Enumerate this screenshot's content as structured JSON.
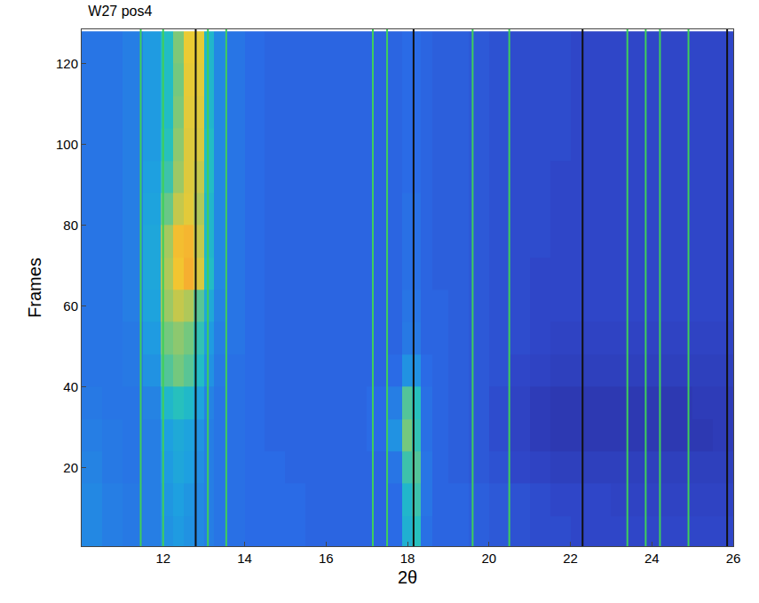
{
  "chart_data": {
    "type": "heatmap",
    "title": "W27 pos4",
    "x_label": "2θ",
    "y_label": "Frames",
    "xlim": [
      10,
      26
    ],
    "ylim": [
      0.5,
      128.5
    ],
    "xticks": [
      12,
      14,
      16,
      18,
      20,
      22,
      24,
      26
    ],
    "yticks": [
      20,
      40,
      60,
      80,
      100,
      120
    ],
    "zlim": [
      0,
      100
    ],
    "x": [
      10.25,
      10.75,
      11.25,
      11.75,
      12.125,
      12.375,
      12.625,
      12.875,
      13.125,
      13.375,
      13.75,
      14.25,
      14.75,
      15.25,
      15.75,
      16.25,
      16.75,
      17.25,
      17.75,
      18.0,
      18.2,
      18.45,
      18.75,
      19.25,
      19.75,
      20.25,
      20.75,
      21.25,
      21.75,
      22.25,
      22.75,
      23.25,
      23.75,
      24.25,
      24.75,
      25.25,
      25.75
    ],
    "y": [
      4,
      12,
      20,
      28,
      36,
      44,
      52,
      60,
      68,
      76,
      84,
      92,
      100,
      108,
      116,
      124
    ],
    "z": [
      [
        20,
        18,
        17,
        18,
        22,
        24,
        22,
        20,
        18,
        16,
        15,
        14,
        14,
        14,
        13,
        13,
        13,
        13,
        14,
        30,
        36,
        15,
        13,
        13,
        12,
        11,
        10,
        9,
        9,
        8,
        8,
        8,
        8,
        8,
        8,
        8,
        8
      ],
      [
        20,
        18,
        17,
        18,
        23,
        25,
        23,
        20,
        18,
        16,
        15,
        14,
        14,
        14,
        13,
        13,
        13,
        13,
        14,
        32,
        40,
        16,
        13,
        13,
        12,
        11,
        10,
        9,
        8,
        8,
        8,
        7,
        7,
        7,
        7,
        7,
        7
      ],
      [
        19,
        17,
        16,
        18,
        24,
        27,
        25,
        21,
        18,
        16,
        15,
        14,
        14,
        13,
        13,
        13,
        13,
        13,
        16,
        40,
        44,
        16,
        13,
        12,
        11,
        10,
        8,
        7,
        6,
        6,
        6,
        6,
        6,
        6,
        6,
        6,
        6
      ],
      [
        18,
        17,
        16,
        18,
        25,
        28,
        26,
        22,
        18,
        16,
        15,
        14,
        13,
        13,
        13,
        13,
        13,
        14,
        22,
        50,
        38,
        15,
        13,
        12,
        11,
        9,
        7,
        5,
        4,
        4,
        4,
        4,
        4,
        4,
        4,
        4,
        5
      ],
      [
        17,
        16,
        16,
        19,
        32,
        36,
        33,
        26,
        19,
        16,
        15,
        14,
        13,
        13,
        13,
        13,
        13,
        14,
        18,
        44,
        36,
        15,
        13,
        12,
        11,
        9,
        7,
        5,
        4,
        4,
        4,
        4,
        4,
        4,
        4,
        5,
        5
      ],
      [
        16,
        16,
        17,
        22,
        44,
        50,
        45,
        34,
        22,
        17,
        15,
        14,
        13,
        13,
        13,
        13,
        13,
        13,
        14,
        22,
        22,
        14,
        13,
        12,
        11,
        10,
        8,
        7,
        6,
        6,
        6,
        6,
        6,
        6,
        6,
        6,
        6
      ],
      [
        16,
        16,
        17,
        24,
        50,
        55,
        50,
        38,
        24,
        18,
        16,
        14,
        13,
        13,
        13,
        13,
        13,
        13,
        13,
        17,
        17,
        13,
        13,
        12,
        11,
        10,
        9,
        8,
        7,
        7,
        7,
        7,
        7,
        7,
        7,
        7,
        7
      ],
      [
        16,
        16,
        18,
        26,
        58,
        66,
        62,
        45,
        28,
        19,
        16,
        14,
        13,
        13,
        13,
        13,
        13,
        13,
        13,
        16,
        16,
        13,
        13,
        12,
        11,
        10,
        9,
        8,
        8,
        8,
        8,
        8,
        8,
        8,
        8,
        8,
        8
      ],
      [
        16,
        16,
        18,
        27,
        62,
        82,
        88,
        70,
        34,
        20,
        16,
        14,
        13,
        13,
        13,
        13,
        13,
        13,
        13,
        15,
        15,
        13,
        12,
        12,
        11,
        10,
        9,
        8,
        8,
        8,
        8,
        8,
        8,
        8,
        8,
        8,
        8
      ],
      [
        16,
        16,
        18,
        27,
        60,
        84,
        86,
        66,
        32,
        20,
        16,
        14,
        13,
        13,
        13,
        13,
        13,
        13,
        13,
        15,
        15,
        13,
        12,
        12,
        11,
        10,
        9,
        9,
        8,
        8,
        8,
        8,
        8,
        8,
        8,
        8,
        8
      ],
      [
        16,
        16,
        18,
        26,
        48,
        66,
        74,
        62,
        32,
        20,
        16,
        14,
        13,
        13,
        13,
        13,
        13,
        13,
        13,
        15,
        15,
        13,
        12,
        12,
        11,
        10,
        9,
        9,
        8,
        8,
        8,
        8,
        8,
        8,
        8,
        8,
        8
      ],
      [
        16,
        16,
        18,
        25,
        40,
        58,
        72,
        66,
        34,
        20,
        16,
        14,
        13,
        13,
        13,
        13,
        13,
        13,
        13,
        14,
        14,
        13,
        12,
        12,
        11,
        10,
        9,
        9,
        8,
        8,
        8,
        8,
        8,
        8,
        8,
        8,
        8
      ],
      [
        16,
        16,
        18,
        24,
        36,
        55,
        72,
        70,
        34,
        20,
        16,
        14,
        13,
        13,
        13,
        13,
        13,
        13,
        13,
        14,
        14,
        13,
        12,
        12,
        11,
        10,
        9,
        9,
        9,
        8,
        8,
        8,
        8,
        8,
        8,
        8,
        8
      ],
      [
        16,
        16,
        18,
        24,
        34,
        52,
        74,
        72,
        32,
        20,
        16,
        14,
        13,
        13,
        13,
        13,
        13,
        13,
        13,
        14,
        14,
        13,
        12,
        12,
        11,
        10,
        9,
        9,
        9,
        8,
        8,
        8,
        8,
        8,
        8,
        8,
        8
      ],
      [
        16,
        16,
        18,
        24,
        34,
        50,
        76,
        74,
        32,
        20,
        16,
        14,
        13,
        13,
        13,
        13,
        13,
        13,
        13,
        14,
        14,
        13,
        12,
        12,
        11,
        10,
        9,
        9,
        9,
        8,
        8,
        8,
        8,
        8,
        8,
        8,
        8
      ],
      [
        16,
        16,
        18,
        24,
        34,
        52,
        78,
        76,
        32,
        20,
        16,
        14,
        13,
        13,
        13,
        13,
        13,
        13,
        13,
        14,
        14,
        13,
        12,
        12,
        11,
        10,
        9,
        9,
        9,
        8,
        8,
        8,
        8,
        8,
        8,
        8,
        8
      ]
    ],
    "reference_lines": [
      {
        "color": "#3fcf5a",
        "x": [
          11.45,
          12.0,
          13.1,
          13.55,
          17.15,
          17.5,
          19.6,
          20.5,
          23.4,
          23.85,
          24.2,
          24.9
        ]
      },
      {
        "color": "#111111",
        "x": [
          12.8,
          18.15,
          22.3,
          25.85
        ]
      }
    ]
  }
}
